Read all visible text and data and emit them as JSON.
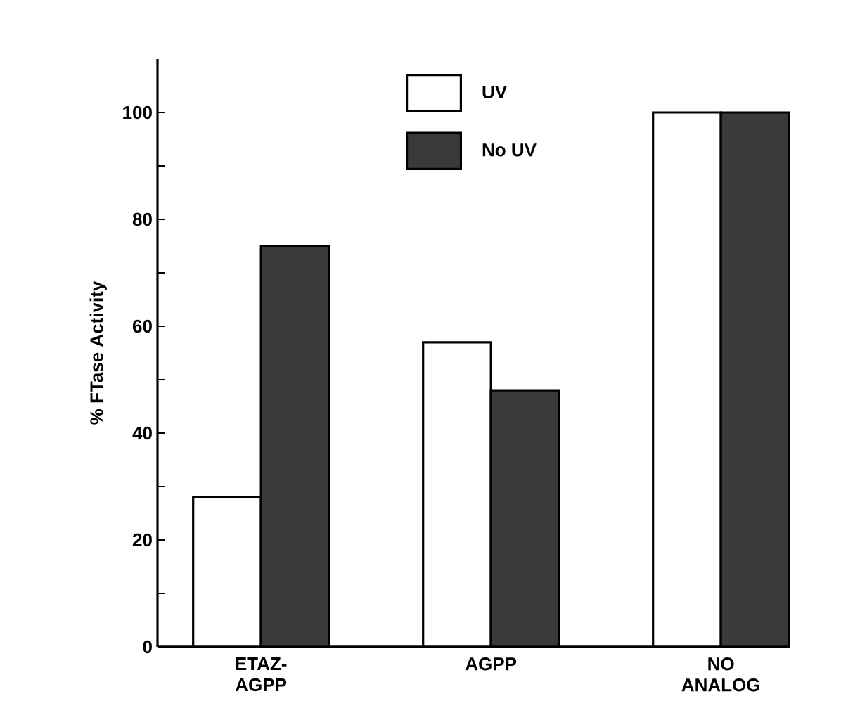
{
  "chart_data": {
    "type": "bar",
    "ylabel": "% FTase Activity",
    "categories": [
      "ETAZ-AGPP",
      "AGPP",
      "NO ANALOG"
    ],
    "series": [
      {
        "name": "UV",
        "color": "#ffffff",
        "values": [
          28,
          57,
          100
        ]
      },
      {
        "name": "No UV",
        "color": "#3a3a3a",
        "values": [
          75,
          48,
          100
        ]
      }
    ],
    "ylim": [
      0,
      110
    ],
    "yticks": [
      0,
      {
        "value": 10,
        "label": null
      },
      20,
      {
        "value": 30,
        "label": null
      },
      40,
      {
        "value": 50,
        "label": null
      },
      60,
      {
        "value": 70,
        "label": null
      },
      80,
      {
        "value": 90,
        "label": null
      },
      100
    ],
    "legend": "top",
    "grid": false
  }
}
